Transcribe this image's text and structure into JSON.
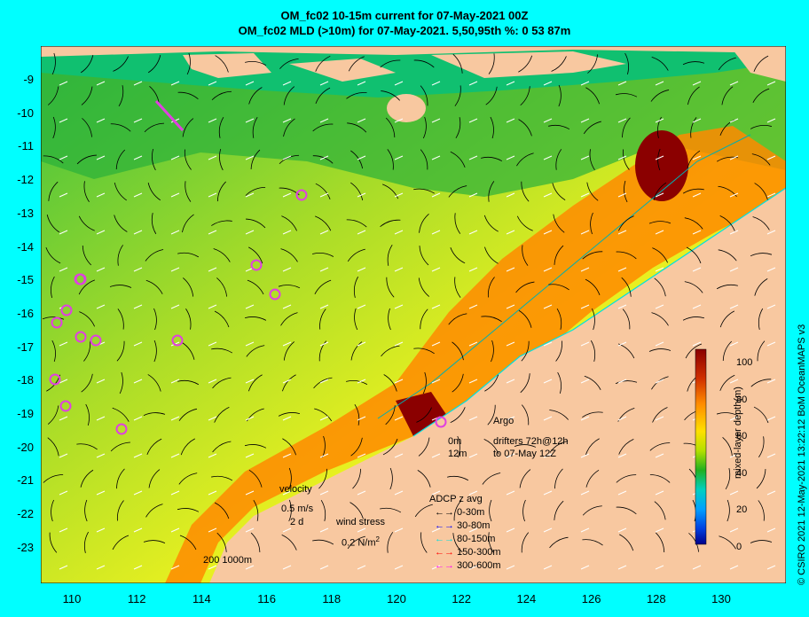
{
  "title_line1": "OM_fc02 10-15m current for 07-May-2021 00Z",
  "title_line2": "OM_fc02 MLD (>10m) for 07-May-2021. 5,50,95th %: 0  53  87m",
  "y_ticks": [
    "-9",
    "-10",
    "-11",
    "-12",
    "-13",
    "-14",
    "-15",
    "-16",
    "-17",
    "-18",
    "-19",
    "-20",
    "-21",
    "-22",
    "-23"
  ],
  "x_ticks": [
    "110",
    "112",
    "114",
    "116",
    "118",
    "120",
    "122",
    "124",
    "126",
    "128",
    "130"
  ],
  "colorbar": {
    "label": "mixed-layer depth(m)",
    "ticks": [
      "100",
      "80",
      "60",
      "40",
      "20",
      "0"
    ],
    "colors": [
      "#8b0000",
      "#ff6000",
      "#ffd200",
      "#c8e600",
      "#20b020",
      "#00d0c0",
      "#0070ff",
      "#00008b"
    ]
  },
  "credit": "© CSIRO 2021  12-May-2021 13:22:12 BoM OceanMAPS v3",
  "legend": {
    "argo": "Argo",
    "drifter_depth1": "0m",
    "drifter_depth2": "12m",
    "drifter_line1": "drifters 72h@12h",
    "drifter_line2": "to 07-May 12Z",
    "velocity": "velocity",
    "velocity_scale": "0.5 m/s",
    "velocity_time": "2 d",
    "wind_stress": "wind stress",
    "wind_scale": "0.2 N/m",
    "wind_exp": "2",
    "adcp_title": "ADCP z avg",
    "adcp": [
      {
        "label": "0-30m",
        "color": "#000000"
      },
      {
        "label": "30-80m",
        "color": "#0000ff"
      },
      {
        "label": "80-150m",
        "color": "#00e0e0"
      },
      {
        "label": "150-300m",
        "color": "#ff0000"
      },
      {
        "label": "300-600m",
        "color": "#ff00ff"
      }
    ],
    "isobath": "200  1000m"
  },
  "colors": {
    "background": "#00ffff",
    "land": "#f8c8a0",
    "argo": "#e040e0"
  }
}
